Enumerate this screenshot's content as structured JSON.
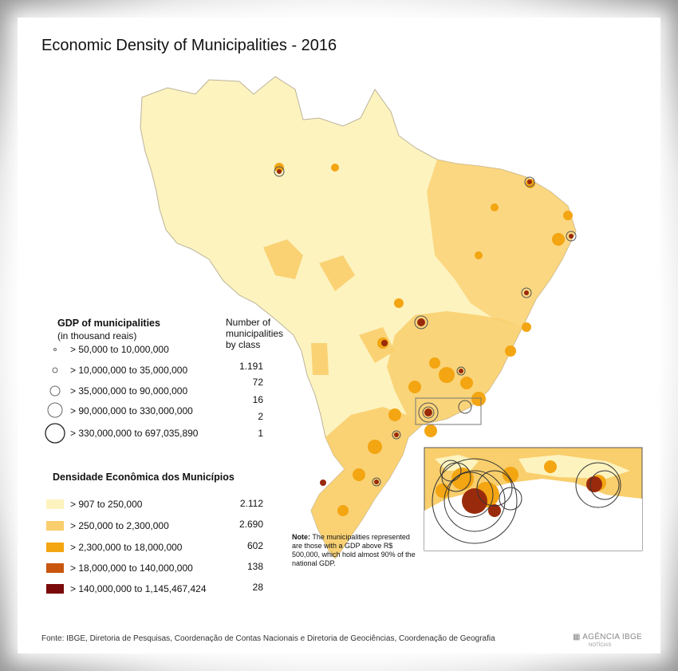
{
  "title": "Economic Density of Municipalities - 2016",
  "gdp_legend": {
    "title": "GDP of municipalities",
    "subtitle": "(in thousand reais)",
    "count_header": [
      "Number of",
      "municipalities",
      "by class"
    ],
    "items": [
      {
        "label": "50,000 to 10,000,000",
        "count": "1.191"
      },
      {
        "label": "10,000,000 to 35,000,000",
        "count": "72"
      },
      {
        "label": "35,000,000 to 90,000,000",
        "count": "16"
      },
      {
        "label": "90,000,000 to 330,000,000",
        "count": "2"
      },
      {
        "label": "330,000,000 to 697,035,890",
        "count": "1"
      }
    ]
  },
  "density_legend": {
    "title": "Densidade Econômica dos Municípios",
    "items": [
      {
        "label": "907 to 250,000",
        "count": "2.112",
        "color": "#fdf3bf"
      },
      {
        "label": "250,000 to 2,300,000",
        "count": "2.690",
        "color": "#f9ce6c"
      },
      {
        "label": "2,300,000 to 18,000,000",
        "count": "602",
        "color": "#f3a512"
      },
      {
        "label": "18,000,000 to 140,000,000",
        "count": "138",
        "color": "#c9560f"
      },
      {
        "label": "140,000,000 to 1,145,467,424",
        "count": "28",
        "color": "#7a0a0a"
      }
    ]
  },
  "note": {
    "bold": "Note:",
    "text": "The municipalities represented are those with a GDP above R$ 500,000, which hold almost 90% of the national GDP."
  },
  "source": "Fonte:  IBGE, Diretoria de Pesquisas, Coordenação de Contas Nacionais e Diretoria de Geociências, Coordenação de Geografia",
  "brand": "AGÊNCIA IBGE",
  "brand_sub": "NOTÍCIAS",
  "colors": {
    "map_light": "#fdf3bf",
    "map_mid": "#f9ce6c",
    "map_orange": "#f3a512",
    "map_dark_orange": "#c9560f",
    "map_dark_red": "#7a0a0a",
    "border": "#9a9a9a"
  }
}
